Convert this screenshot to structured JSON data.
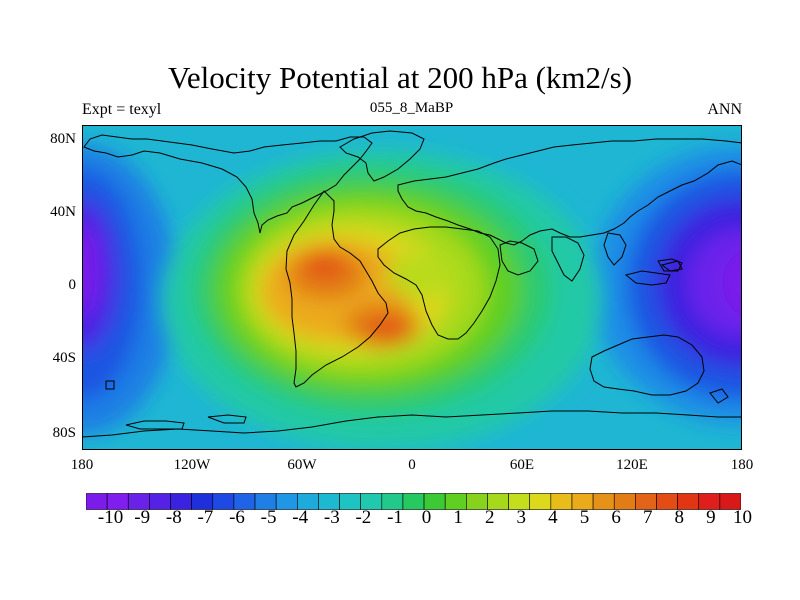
{
  "title": "Velocity Potential at 200 hPa (km2/s)",
  "left_label": "Expt = texyl",
  "center_label": "055_8_MaBP",
  "right_label": "ANN",
  "lat_labels": [
    "80N",
    "40N",
    "0",
    "40S",
    "80S"
  ],
  "lon_labels": [
    "180",
    "120W",
    "60W",
    "0",
    "60E",
    "120E",
    "180"
  ],
  "colorbar": {
    "labels": [
      "-10",
      "-9",
      "-8",
      "-7",
      "-6",
      "-5",
      "-4",
      "-3",
      "-2",
      "-1",
      "0",
      "1",
      "2",
      "3",
      "4",
      "5",
      "6",
      "7",
      "8",
      "9",
      "10"
    ],
    "colors": [
      "#7b1cea",
      "#801eef",
      "#6a22ea",
      "#5521e6",
      "#3b21e0",
      "#1f2fdb",
      "#1f49e4",
      "#1e63e8",
      "#1f7fe5",
      "#1f97e6",
      "#1faadc",
      "#1cb9d0",
      "#1ec3c4",
      "#20c9ad",
      "#22c98a",
      "#25c960",
      "#3bca36",
      "#5fcf22",
      "#86d21d",
      "#a6d91b",
      "#c4dd1c",
      "#dcd81b",
      "#e8bc19",
      "#ebaa1a",
      "#e69218",
      "#e27d15",
      "#e36318",
      "#e34d15",
      "#e23514",
      "#df1f1b",
      "#d81819"
    ]
  }
}
